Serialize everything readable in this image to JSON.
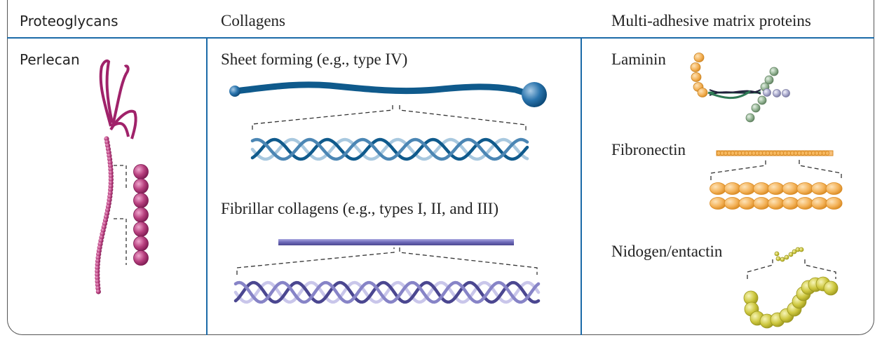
{
  "header": {
    "col1": "Proteoglycans",
    "col2": "Collagens",
    "col3": "Multi-adhesive matrix proteins"
  },
  "proteoglycans": {
    "perlecan_label": "Perlecan"
  },
  "collagens": {
    "sheet_label": "Sheet forming (e.g., type IV)",
    "fibrillar_label": "Fibrillar collagens (e.g., types I, II, and III)"
  },
  "adhesive": {
    "laminin_label": "Laminin",
    "fibronectin_label": "Fibronectin",
    "nidogen_label": "Nidogen/entactin"
  },
  "colors": {
    "rule": "#1b6aa8",
    "perlecan": "#a0226a",
    "collagen_sheet": "#0f5a8c",
    "collagen_fibrillar": "#6b67b0",
    "laminin_green": "#8fae8f",
    "fibronectin": "#f3a94a",
    "nidogen": "#c9c43a"
  }
}
